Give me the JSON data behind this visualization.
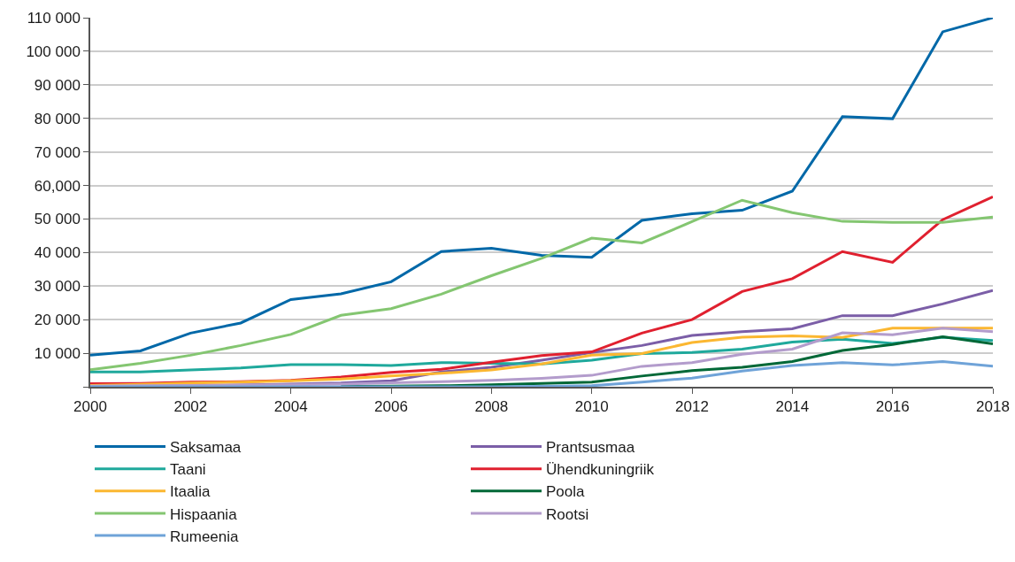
{
  "chart_data": {
    "type": "line",
    "x": [
      2000,
      2001,
      2002,
      2003,
      2004,
      2005,
      2006,
      2007,
      2008,
      2009,
      2010,
      2011,
      2012,
      2013,
      2014,
      2015,
      2016,
      2017,
      2018
    ],
    "series": [
      {
        "name": "Saksamaa",
        "color": "#0068a8",
        "values": [
          9400,
          10700,
          16000,
          19000,
          26000,
          27700,
          31300,
          40300,
          41300,
          39200,
          38600,
          49600,
          51600,
          52600,
          58300,
          80500,
          79900,
          105800,
          110000
        ]
      },
      {
        "name": "Prantsusmaa",
        "color": "#7b5ea7",
        "values": [
          100,
          200,
          300,
          500,
          800,
          1100,
          1800,
          4400,
          5800,
          7900,
          10200,
          12300,
          15300,
          16400,
          17300,
          21200,
          21200,
          24700,
          28700
        ]
      },
      {
        "name": "Taani",
        "color": "#1fa99c",
        "values": [
          4400,
          4400,
          5000,
          5600,
          6600,
          6600,
          6300,
          7200,
          7000,
          6800,
          7900,
          9900,
          10200,
          11200,
          13300,
          14200,
          12900,
          14800,
          13800
        ]
      },
      {
        "name": "Ühendkuningriik",
        "color": "#e0202f",
        "values": [
          900,
          1000,
          1400,
          1500,
          1900,
          2900,
          4300,
          5200,
          7300,
          9300,
          10400,
          16000,
          20000,
          28400,
          32200,
          40300,
          37100,
          49800,
          56600
        ]
      },
      {
        "name": "Itaalia",
        "color": "#fbb731",
        "values": [
          400,
          700,
          1100,
          1400,
          1800,
          2300,
          3200,
          4000,
          5000,
          6800,
          9400,
          9900,
          13200,
          14800,
          15200,
          14700,
          17500,
          17500,
          17500
        ]
      },
      {
        "name": "Poola",
        "color": "#006837",
        "values": [
          null,
          null,
          null,
          null,
          null,
          100,
          200,
          300,
          600,
          1000,
          1400,
          3200,
          4800,
          5800,
          7500,
          10800,
          12600,
          14900,
          12800
        ]
      },
      {
        "name": "Hispaania",
        "color": "#84c671",
        "values": [
          5100,
          7000,
          9400,
          12300,
          15600,
          21300,
          23300,
          27600,
          33100,
          38300,
          44300,
          42900,
          49200,
          55600,
          51900,
          49300,
          49000,
          49000,
          50600
        ]
      },
      {
        "name": "Rootsi",
        "color": "#b39ccc",
        "values": [
          200,
          300,
          400,
          500,
          600,
          800,
          1200,
          1500,
          1900,
          2500,
          3400,
          6100,
          7200,
          9700,
          11200,
          16100,
          15500,
          17500,
          16400
        ]
      },
      {
        "name": "Rumeenia",
        "color": "#6fa3d8",
        "values": [
          0,
          0,
          0,
          0,
          0,
          0,
          0,
          0,
          0,
          100,
          300,
          1400,
          2600,
          4700,
          6300,
          7200,
          6500,
          7500,
          6100
        ]
      }
    ],
    "xlim": [
      2000,
      2018
    ],
    "xticks": [
      2000,
      2002,
      2004,
      2006,
      2008,
      2010,
      2012,
      2014,
      2016,
      2018
    ],
    "ylim": [
      0,
      110000
    ],
    "yticks": [
      {
        "value": 0,
        "label": null
      },
      {
        "value": 10000,
        "label": "10 000"
      },
      {
        "value": 20000,
        "label": "20 000"
      },
      {
        "value": 30000,
        "label": "30 000"
      },
      {
        "value": 40000,
        "label": "40 000"
      },
      {
        "value": 50000,
        "label": "50 000"
      },
      {
        "value": 60000,
        "label": "60,000"
      },
      {
        "value": 70000,
        "label": "70 000"
      },
      {
        "value": 80000,
        "label": "80 000"
      },
      {
        "value": 90000,
        "label": "90 000"
      },
      {
        "value": 100000,
        "label": "100 000"
      },
      {
        "value": 110000,
        "label": "110 000"
      }
    ],
    "grid": "y",
    "legend": "bottom",
    "marker": "none",
    "line_style": "solid"
  }
}
